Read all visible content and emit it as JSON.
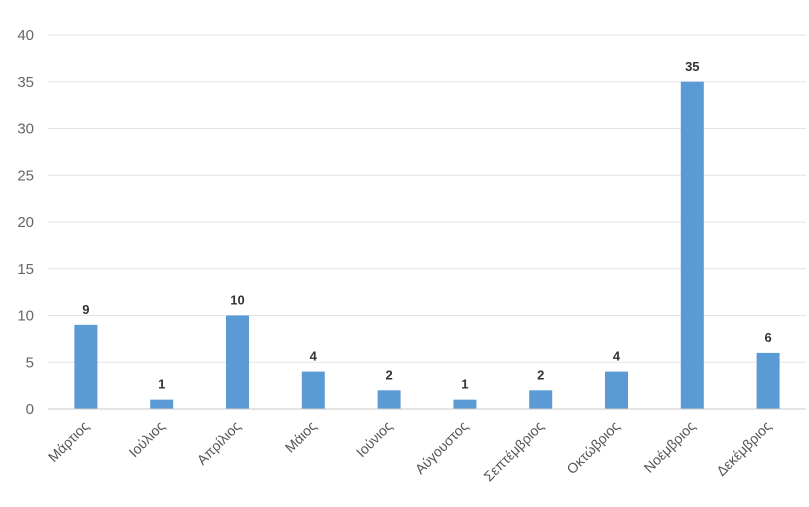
{
  "chart_data": {
    "type": "bar",
    "categories": [
      "Μάρτιος",
      "Ιούλιος",
      "Απρίλιος",
      "Μάιος",
      "Ιούνιος",
      "Αύγουστος",
      "Σεπτέμβριος",
      "Οκτώβριος",
      "Νοέμβριος",
      "Δεκέμβριος"
    ],
    "values": [
      9,
      1,
      10,
      4,
      2,
      1,
      2,
      4,
      35,
      6
    ],
    "ylim": [
      0,
      40
    ],
    "yticks": [
      0,
      5,
      10,
      15,
      20,
      25,
      30,
      35,
      40
    ],
    "data_labels": true,
    "grid": true,
    "legend": "none",
    "title": "",
    "xlabel": "",
    "ylabel": "",
    "colors": {
      "bar": "#5b9bd5",
      "grid": "#e3e3e3",
      "axis": "#c8c8c8",
      "tick_text": "#666666",
      "label_text": "#333333"
    }
  }
}
